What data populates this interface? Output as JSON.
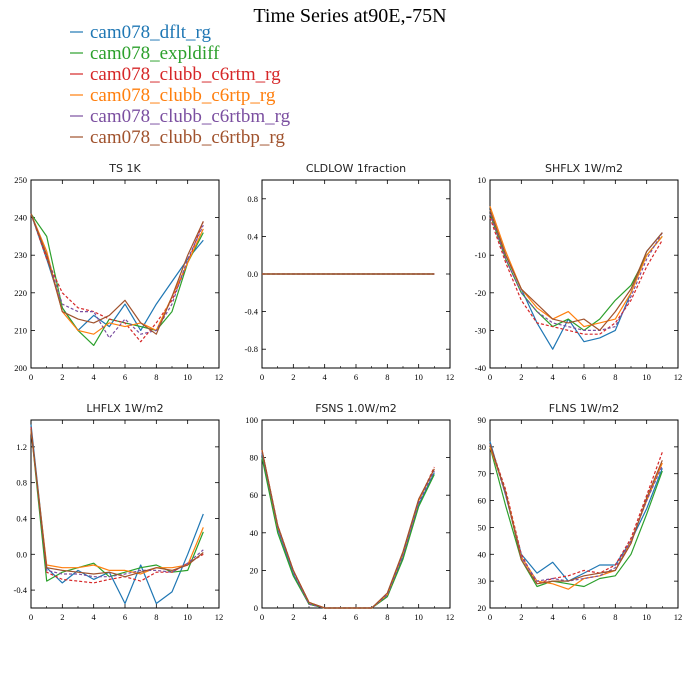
{
  "figure": {
    "title": "Time Series at90E,-75N",
    "legend": [
      {
        "name": "cam078_dflt_rg",
        "color": "#1f77b4"
      },
      {
        "name": "cam078_expldiff",
        "color": "#2ca02c"
      },
      {
        "name": "cam078_clubb_c6rtm_rg",
        "color": "#d62728"
      },
      {
        "name": "cam078_clubb_c6rtp_rg",
        "color": "#ff7f0e"
      },
      {
        "name": "cam078_clubb_c6rtbm_rg",
        "color": "#7b4fa0"
      },
      {
        "name": "cam078_clubb_c6rtbp_rg",
        "color": "#a0522d"
      }
    ]
  },
  "chart_data": [
    {
      "type": "line",
      "title": "TS  1K",
      "x": [
        0,
        1,
        2,
        3,
        4,
        5,
        6,
        7,
        8,
        9,
        10,
        11
      ],
      "xlim": [
        0,
        12
      ],
      "ylim": [
        200,
        250
      ],
      "xticks": [
        0,
        2,
        4,
        6,
        8,
        10,
        12
      ],
      "yticks": [
        200,
        210,
        220,
        230,
        240,
        250
      ],
      "yticklabels": [
        "200",
        "210",
        "220",
        "230",
        "240",
        "250"
      ],
      "series": [
        {
          "values": [
            241,
            229,
            216,
            210,
            214,
            211,
            217,
            210,
            217,
            223,
            229,
            234
          ],
          "color": "#1f77b4",
          "dash": false
        },
        {
          "values": [
            241,
            235,
            216,
            210,
            206,
            213,
            212,
            211,
            210,
            215,
            228,
            236
          ],
          "color": "#2ca02c",
          "dash": false
        },
        {
          "values": [
            241,
            229,
            220,
            216,
            215,
            213,
            212,
            207,
            212,
            218,
            228,
            239
          ],
          "color": "#d62728",
          "dash": true
        },
        {
          "values": [
            241,
            231,
            215,
            210,
            209,
            212,
            211,
            212,
            210,
            219,
            228,
            237
          ],
          "color": "#ff7f0e",
          "dash": false
        },
        {
          "values": [
            241,
            230,
            217,
            215,
            215,
            208,
            213,
            209,
            210,
            217,
            229,
            238
          ],
          "color": "#7b4fa0",
          "dash": true
        },
        {
          "values": [
            241,
            230,
            215,
            213,
            212,
            214,
            218,
            212,
            209,
            219,
            230,
            239
          ],
          "color": "#a0522d",
          "dash": false
        }
      ]
    },
    {
      "type": "line",
      "title": "CLDLOW  1fraction",
      "x": [
        0,
        1,
        2,
        3,
        4,
        5,
        6,
        7,
        8,
        9,
        10,
        11
      ],
      "xlim": [
        0,
        12
      ],
      "ylim": [
        -1,
        1
      ],
      "xticks": [
        0,
        2,
        4,
        6,
        8,
        10,
        12
      ],
      "yticks": [
        -0.8,
        -0.4,
        0,
        0.4,
        0.8
      ],
      "yticklabels": [
        "-0.8",
        "-0.4",
        "0.0",
        "0.4",
        "0.8"
      ],
      "series": [
        {
          "values": [
            0,
            0,
            0,
            0,
            0,
            0,
            0,
            0,
            0,
            0,
            0,
            0
          ],
          "color": "#1f77b4",
          "dash": false
        },
        {
          "values": [
            0,
            0,
            0,
            0,
            0,
            0,
            0,
            0,
            0,
            0,
            0,
            0
          ],
          "color": "#2ca02c",
          "dash": false
        },
        {
          "values": [
            0,
            0,
            0,
            0,
            0,
            0,
            0,
            0,
            0,
            0,
            0,
            0
          ],
          "color": "#d62728",
          "dash": true
        },
        {
          "values": [
            0,
            0,
            0,
            0,
            0,
            0,
            0,
            0,
            0,
            0,
            0,
            0
          ],
          "color": "#ff7f0e",
          "dash": false
        },
        {
          "values": [
            0,
            0,
            0,
            0,
            0,
            0,
            0,
            0,
            0,
            0,
            0,
            0
          ],
          "color": "#7b4fa0",
          "dash": true
        },
        {
          "values": [
            0,
            0,
            0,
            0,
            0,
            0,
            0,
            0,
            0,
            0,
            0,
            0
          ],
          "color": "#a0522d",
          "dash": false
        }
      ]
    },
    {
      "type": "line",
      "title": "SHFLX  1W/m2",
      "x": [
        0,
        1,
        2,
        3,
        4,
        5,
        6,
        7,
        8,
        9,
        10,
        11
      ],
      "xlim": [
        0,
        12
      ],
      "ylim": [
        -40,
        10
      ],
      "xticks": [
        0,
        2,
        4,
        6,
        8,
        10,
        12
      ],
      "yticks": [
        -40,
        -30,
        -20,
        -10,
        0,
        10
      ],
      "yticklabels": [
        "-40",
        "-30",
        "-20",
        "-10",
        "0",
        "10"
      ],
      "series": [
        {
          "values": [
            2,
            -10,
            -19,
            -28,
            -35,
            -27,
            -33,
            -32,
            -30,
            -20,
            -9,
            -4
          ],
          "color": "#1f77b4",
          "dash": false
        },
        {
          "values": [
            1,
            -11,
            -20,
            -25,
            -29,
            -27,
            -30,
            -27,
            -22,
            -18,
            -10,
            -5
          ],
          "color": "#2ca02c",
          "dash": false
        },
        {
          "values": [
            0,
            -12,
            -22,
            -28,
            -29,
            -30,
            -31,
            -31,
            -28,
            -22,
            -13,
            -6
          ],
          "color": "#d62728",
          "dash": true
        },
        {
          "values": [
            3,
            -9,
            -19,
            -24,
            -27,
            -25,
            -29,
            -28,
            -27,
            -20,
            -10,
            -5
          ],
          "color": "#ff7f0e",
          "dash": false
        },
        {
          "values": [
            1,
            -11,
            -20,
            -25,
            -28,
            -29,
            -30,
            -30,
            -29,
            -21,
            -11,
            -4
          ],
          "color": "#7b4fa0",
          "dash": true
        },
        {
          "values": [
            2,
            -10,
            -19,
            -23,
            -27,
            -28,
            -27,
            -30,
            -25,
            -19,
            -9,
            -4
          ],
          "color": "#a0522d",
          "dash": false
        }
      ]
    },
    {
      "type": "line",
      "title": "LHFLX  1W/m2",
      "x": [
        0,
        1,
        2,
        3,
        4,
        5,
        6,
        7,
        8,
        9,
        10,
        11
      ],
      "xlim": [
        0,
        12
      ],
      "ylim": [
        -0.6,
        1.5
      ],
      "xticks": [
        0,
        2,
        4,
        6,
        8,
        10,
        12
      ],
      "yticks": [
        -0.4,
        0,
        0.4,
        0.8,
        1.2
      ],
      "yticklabels": [
        "-0.4",
        "0.0",
        "0.4",
        "0.8",
        "1.2"
      ],
      "series": [
        {
          "values": [
            1.45,
            -0.15,
            -0.32,
            -0.18,
            -0.28,
            -0.2,
            -0.55,
            -0.12,
            -0.55,
            -0.42,
            0.0,
            0.45
          ],
          "color": "#1f77b4",
          "dash": false
        },
        {
          "values": [
            1.4,
            -0.3,
            -0.2,
            -0.15,
            -0.1,
            -0.25,
            -0.2,
            -0.15,
            -0.12,
            -0.2,
            -0.18,
            0.25
          ],
          "color": "#2ca02c",
          "dash": false
        },
        {
          "values": [
            1.42,
            -0.2,
            -0.28,
            -0.3,
            -0.32,
            -0.28,
            -0.25,
            -0.3,
            -0.2,
            -0.2,
            -0.1,
            0.0
          ],
          "color": "#d62728",
          "dash": true
        },
        {
          "values": [
            1.38,
            -0.12,
            -0.15,
            -0.15,
            -0.12,
            -0.18,
            -0.18,
            -0.22,
            -0.15,
            -0.15,
            -0.12,
            0.3
          ],
          "color": "#ff7f0e",
          "dash": false
        },
        {
          "values": [
            1.4,
            -0.18,
            -0.22,
            -0.22,
            -0.25,
            -0.25,
            -0.22,
            -0.18,
            -0.18,
            -0.2,
            -0.1,
            0.05
          ],
          "color": "#7b4fa0",
          "dash": true
        },
        {
          "values": [
            1.4,
            -0.15,
            -0.18,
            -0.2,
            -0.22,
            -0.2,
            -0.25,
            -0.2,
            -0.15,
            -0.18,
            -0.12,
            0.02
          ],
          "color": "#a0522d",
          "dash": false
        }
      ]
    },
    {
      "type": "line",
      "title": "FSNS  1.0W/m2",
      "x": [
        0,
        1,
        2,
        3,
        4,
        5,
        6,
        7,
        8,
        9,
        10,
        11
      ],
      "xlim": [
        0,
        12
      ],
      "ylim": [
        0,
        100
      ],
      "xticks": [
        0,
        2,
        4,
        6,
        8,
        10,
        12
      ],
      "yticks": [
        0,
        20,
        40,
        60,
        80,
        100
      ],
      "yticklabels": [
        "0",
        "20",
        "40",
        "60",
        "80",
        "100"
      ],
      "series": [
        {
          "values": [
            82,
            42,
            18,
            2,
            0,
            0,
            0,
            0,
            6,
            27,
            55,
            72
          ],
          "color": "#1f77b4",
          "dash": false
        },
        {
          "values": [
            80,
            40,
            17,
            2,
            0,
            0,
            0,
            0,
            6,
            26,
            54,
            71
          ],
          "color": "#2ca02c",
          "dash": false
        },
        {
          "values": [
            84,
            44,
            20,
            3,
            0,
            0,
            0,
            0,
            7,
            29,
            57,
            75
          ],
          "color": "#d62728",
          "dash": true
        },
        {
          "values": [
            84,
            43,
            20,
            3,
            0,
            0,
            0,
            0,
            7,
            29,
            57,
            74
          ],
          "color": "#ff7f0e",
          "dash": false
        },
        {
          "values": [
            83,
            43,
            19,
            2,
            0,
            0,
            0,
            0,
            7,
            28,
            56,
            73
          ],
          "color": "#7b4fa0",
          "dash": true
        },
        {
          "values": [
            84,
            44,
            20,
            3,
            0,
            0,
            0,
            0,
            8,
            30,
            58,
            74
          ],
          "color": "#a0522d",
          "dash": false
        }
      ]
    },
    {
      "type": "line",
      "title": "FLNS  1W/m2",
      "x": [
        0,
        1,
        2,
        3,
        4,
        5,
        6,
        7,
        8,
        9,
        10,
        11
      ],
      "xlim": [
        0,
        12
      ],
      "ylim": [
        20,
        90
      ],
      "xticks": [
        0,
        2,
        4,
        6,
        8,
        10,
        12
      ],
      "yticks": [
        20,
        30,
        40,
        50,
        60,
        70,
        80,
        90
      ],
      "yticklabels": [
        "20",
        "30",
        "40",
        "50",
        "60",
        "70",
        "80",
        "90"
      ],
      "series": [
        {
          "values": [
            82,
            62,
            40,
            33,
            37,
            30,
            33,
            36,
            36,
            45,
            57,
            72
          ],
          "color": "#1f77b4",
          "dash": false
        },
        {
          "values": [
            80,
            58,
            38,
            28,
            30,
            29,
            28,
            31,
            32,
            40,
            55,
            71
          ],
          "color": "#2ca02c",
          "dash": false
        },
        {
          "values": [
            81,
            64,
            40,
            29,
            31,
            32,
            34,
            33,
            36,
            46,
            62,
            78
          ],
          "color": "#d62728",
          "dash": true
        },
        {
          "values": [
            80,
            63,
            39,
            30,
            29,
            27,
            31,
            32,
            34,
            45,
            60,
            74
          ],
          "color": "#ff7f0e",
          "dash": false
        },
        {
          "values": [
            81,
            62,
            39,
            30,
            31,
            30,
            31,
            32,
            35,
            45,
            60,
            73
          ],
          "color": "#7b4fa0",
          "dash": true
        },
        {
          "values": [
            81,
            63,
            38,
            29,
            30,
            30,
            32,
            33,
            34,
            44,
            61,
            75
          ],
          "color": "#a0522d",
          "dash": false
        }
      ]
    }
  ]
}
